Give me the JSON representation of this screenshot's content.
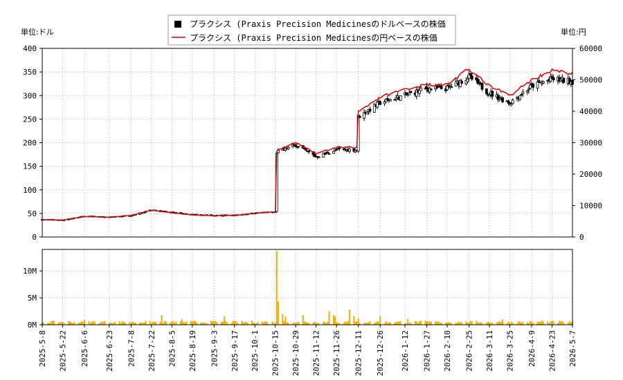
{
  "chart_data": [
    {
      "type": "candlestick+line",
      "legend": [
        "プラクシス (Praxis Precision Medicinesのドルベースの株価",
        "プラクシス (Praxis Precision Medicinesの円ベースの株価"
      ],
      "legend_placement": "top-center",
      "left_unit": "単位:ドル",
      "right_unit": "単位:円",
      "y_left_lim": [
        0,
        400
      ],
      "y_right_lim": [
        0,
        60000
      ],
      "y_left_ticks": [
        0,
        50,
        100,
        150,
        200,
        250,
        300,
        350,
        400
      ],
      "y_right_ticks": [
        0,
        10000,
        20000,
        30000,
        40000,
        50000,
        60000
      ],
      "grid": true,
      "colors": {
        "usd": "#000000",
        "jpy": "#dd0000",
        "volume": "#f0b000",
        "grid": "#cccccc"
      },
      "x_ticks": [
        "2025-5-8",
        "2025-5-22",
        "2025-6-6",
        "2025-6-23",
        "2025-7-8",
        "2025-7-22",
        "2025-8-5",
        "2025-8-19",
        "2025-9-3",
        "2025-9-17",
        "2025-10-1",
        "2025-10-15",
        "2025-10-29",
        "2025-11-12",
        "2025-11-26",
        "2025-12-11",
        "2025-12-26",
        "2026-1-12",
        "2026-1-27",
        "2026-2-10",
        "2026-2-25",
        "2026-3-11",
        "2026-3-25",
        "2026-4-9",
        "2026-4-23",
        "2026-5-7"
      ],
      "usd_close_keypoints": [
        [
          "2025-5-8",
          37
        ],
        [
          "2025-5-22",
          36
        ],
        [
          "2025-6-6",
          44
        ],
        [
          "2025-6-23",
          42
        ],
        [
          "2025-7-8",
          46
        ],
        [
          "2025-7-22",
          57
        ],
        [
          "2025-8-5",
          52
        ],
        [
          "2025-8-19",
          47
        ],
        [
          "2025-9-3",
          46
        ],
        [
          "2025-9-17",
          46
        ],
        [
          "2025-10-1",
          51
        ],
        [
          "2025-10-15",
          53
        ],
        [
          "2025-10-16",
          180
        ],
        [
          "2025-10-29",
          195
        ],
        [
          "2025-11-12",
          170
        ],
        [
          "2025-11-26",
          185
        ],
        [
          "2025-12-10",
          185
        ],
        [
          "2025-12-11",
          255
        ],
        [
          "2025-12-26",
          285
        ],
        [
          "2026-1-12",
          300
        ],
        [
          "2026-1-27",
          315
        ],
        [
          "2026-2-10",
          315
        ],
        [
          "2026-2-25",
          340
        ],
        [
          "2026-3-11",
          305
        ],
        [
          "2026-3-25",
          285
        ],
        [
          "2026-4-9",
          320
        ],
        [
          "2026-4-23",
          335
        ],
        [
          "2026-5-7",
          330
        ]
      ],
      "jpy_close_keypoints": [
        [
          "2025-5-8",
          5500
        ],
        [
          "2025-5-22",
          5400
        ],
        [
          "2025-6-6",
          6500
        ],
        [
          "2025-6-23",
          6300
        ],
        [
          "2025-7-8",
          6900
        ],
        [
          "2025-7-22",
          8500
        ],
        [
          "2025-8-5",
          7700
        ],
        [
          "2025-8-19",
          7000
        ],
        [
          "2025-9-3",
          6800
        ],
        [
          "2025-9-17",
          6800
        ],
        [
          "2025-10-1",
          7600
        ],
        [
          "2025-10-15",
          8000
        ],
        [
          "2025-10-16",
          27500
        ],
        [
          "2025-10-29",
          30000
        ],
        [
          "2025-11-12",
          26500
        ],
        [
          "2025-11-26",
          28500
        ],
        [
          "2025-12-10",
          28500
        ],
        [
          "2025-12-11",
          40000
        ],
        [
          "2025-12-26",
          44500
        ],
        [
          "2026-1-12",
          47000
        ],
        [
          "2026-1-27",
          48500
        ],
        [
          "2026-2-10",
          48500
        ],
        [
          "2026-2-25",
          53500
        ],
        [
          "2026-3-11",
          48000
        ],
        [
          "2026-3-25",
          45000
        ],
        [
          "2026-4-9",
          50000
        ],
        [
          "2026-4-23",
          53000
        ],
        [
          "2026-5-7",
          52000
        ]
      ],
      "volume_ylim": [
        0,
        14000000
      ],
      "volume_ticks": [
        "0M",
        "5M",
        "10M"
      ],
      "volume_tick_values": [
        0,
        5000000,
        10000000
      ],
      "volume_typical": 500000,
      "volume_spikes": [
        [
          "2025-6-6",
          900000
        ],
        [
          "2025-7-29",
          1800000
        ],
        [
          "2025-8-12",
          1000000
        ],
        [
          "2025-9-10",
          1500000
        ],
        [
          "2025-10-16",
          13700000
        ],
        [
          "2025-10-17",
          4300000
        ],
        [
          "2025-10-20",
          2000000
        ],
        [
          "2025-10-22",
          1500000
        ],
        [
          "2025-11-3",
          1800000
        ],
        [
          "2025-11-21",
          2500000
        ],
        [
          "2025-11-24",
          1800000
        ],
        [
          "2025-11-25",
          1500000
        ],
        [
          "2025-12-5",
          2800000
        ],
        [
          "2025-12-8",
          1600000
        ],
        [
          "2025-12-11",
          1200000
        ],
        [
          "2025-12-26",
          1600000
        ],
        [
          "2026-1-14",
          1100000
        ],
        [
          "2026-3-20",
          1000000
        ],
        [
          "2026-4-16",
          800000
        ]
      ]
    }
  ]
}
